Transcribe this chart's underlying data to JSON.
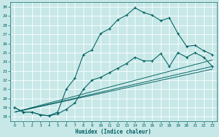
{
  "xlabel": "Humidex (Indice chaleur)",
  "bg_color": "#c8e8e8",
  "grid_color": "#ffffff",
  "line_color": "#006060",
  "xlim": [
    -0.5,
    23.5
  ],
  "ylim": [
    17.5,
    30.5
  ],
  "xticks": [
    0,
    1,
    2,
    3,
    4,
    5,
    6,
    7,
    8,
    9,
    10,
    11,
    12,
    13,
    14,
    15,
    16,
    17,
    18,
    19,
    20,
    21,
    22,
    23
  ],
  "yticks": [
    18,
    19,
    20,
    21,
    22,
    23,
    24,
    25,
    26,
    27,
    28,
    29,
    30
  ],
  "curve1_x": [
    0,
    1,
    2,
    3,
    4,
    5,
    6,
    7,
    8,
    9,
    10,
    11,
    12,
    13,
    14,
    15,
    16,
    17,
    18,
    19,
    20,
    21,
    22,
    23
  ],
  "curve1_y": [
    19.0,
    18.5,
    18.5,
    18.2,
    18.1,
    18.5,
    21.0,
    22.2,
    24.8,
    25.3,
    27.1,
    27.6,
    28.6,
    29.1,
    29.9,
    29.4,
    29.1,
    28.5,
    28.8,
    27.1,
    25.7,
    25.8,
    25.2,
    24.8
  ],
  "curve2_x": [
    0,
    1,
    2,
    3,
    4,
    5,
    6,
    7,
    8,
    9,
    10,
    11,
    12,
    13,
    14,
    15,
    16,
    17,
    18,
    19,
    20,
    21,
    22,
    23
  ],
  "curve2_y": [
    19.0,
    18.5,
    18.5,
    18.2,
    18.1,
    18.3,
    18.8,
    19.5,
    21.0,
    22.0,
    22.3,
    22.8,
    23.3,
    23.8,
    24.5,
    24.1,
    24.1,
    24.9,
    23.5,
    25.0,
    24.5,
    25.0,
    24.5,
    23.5
  ],
  "line1_x": [
    0,
    23
  ],
  "line1_y": [
    18.5,
    23.5
  ],
  "line2_x": [
    0,
    23
  ],
  "line2_y": [
    18.5,
    23.2
  ],
  "line3_x": [
    0,
    23
  ],
  "line3_y": [
    18.5,
    24.2
  ]
}
